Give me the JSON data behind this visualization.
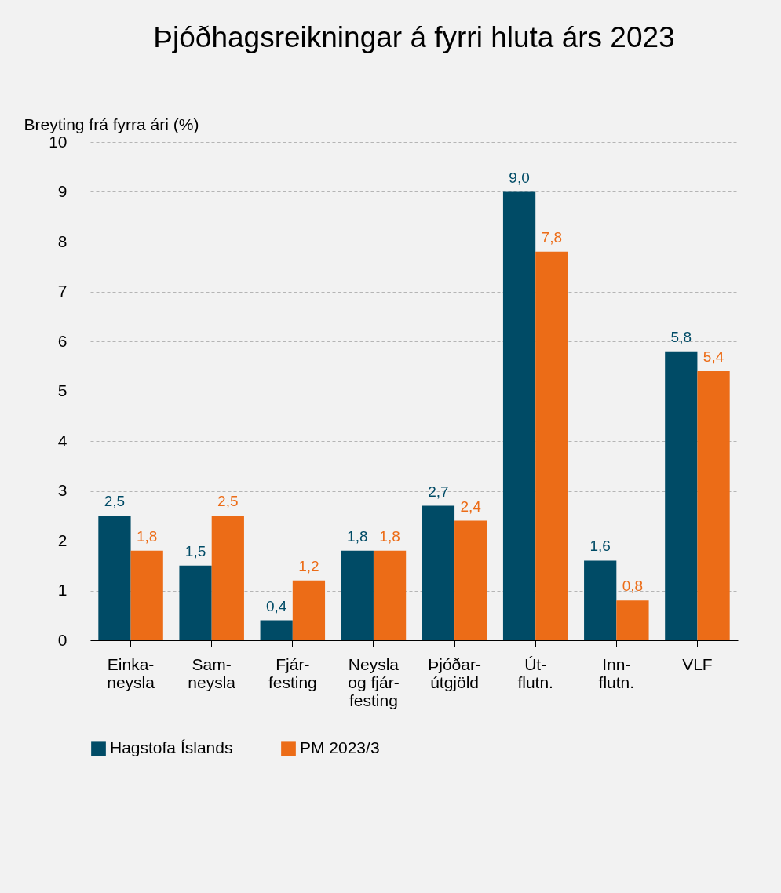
{
  "chart_data": {
    "type": "bar",
    "title": "Þjóðhagsreikningar á fyrri hluta árs 2023",
    "ylabel": "Breyting frá fyrra ári (%)",
    "categories": [
      "Einka-\nneysla",
      "Sam-\nneysla",
      "Fjár-\nfesting",
      "Neysla\nog fjár-\nfesting",
      "Þjóðar-\nútgjöld",
      "Út-\nflutn.",
      "Inn-\nflutn.",
      "VLF"
    ],
    "series": [
      {
        "name": "Hagstofa Íslands",
        "color": "#004b66",
        "values": [
          2.5,
          1.5,
          0.4,
          1.8,
          2.7,
          9.0,
          1.6,
          5.8
        ],
        "value_labels": [
          "2,5",
          "1,5",
          "0,4",
          "1,8",
          "2,7",
          "9,0",
          "1,6",
          "5,8"
        ]
      },
      {
        "name": "PM 2023/3",
        "color": "#ec6c17",
        "values": [
          1.8,
          2.5,
          1.2,
          1.8,
          2.4,
          7.8,
          0.8,
          5.4
        ],
        "value_labels": [
          "1,8",
          "2,5",
          "1,2",
          "1,8",
          "2,4",
          "7,8",
          "0,8",
          "5,4"
        ]
      }
    ],
    "ylim": [
      0,
      10
    ],
    "yticks": [
      0,
      1,
      2,
      3,
      4,
      5,
      6,
      7,
      8,
      9,
      10
    ],
    "grid": "y",
    "legend": "bottom"
  }
}
